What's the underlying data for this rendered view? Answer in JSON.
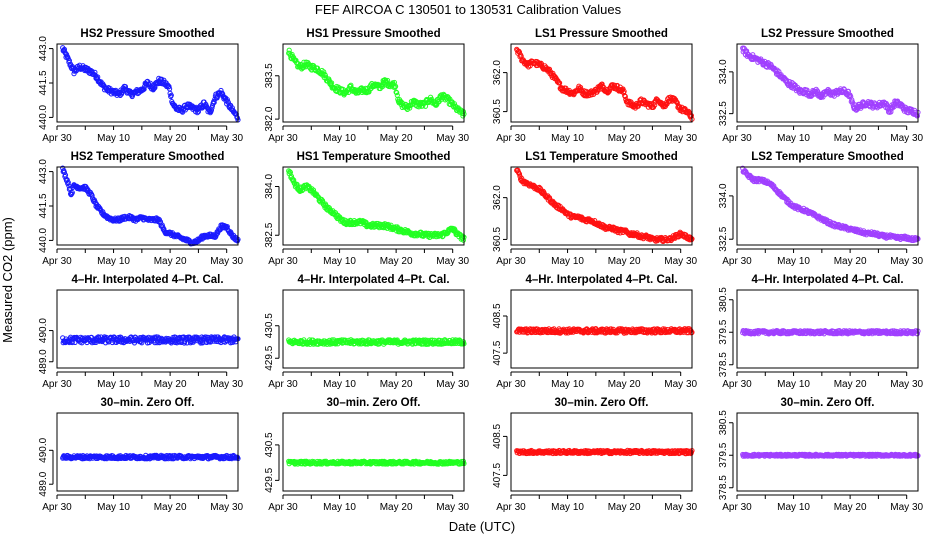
{
  "figure": {
    "title": "FEF    AIRCOA C    130501 to 130531    Calibration Values",
    "ylabel": "Measured CO2 (ppm)",
    "xlabel": "Date (UTC)"
  },
  "colors": {
    "HS2": "#1a1aff",
    "HS1": "#22ff22",
    "LS1": "#ff1111",
    "LS2": "#a040ff"
  },
  "x_axis": {
    "min_day": 0,
    "max_day": 32,
    "ticks": [
      0,
      5,
      10,
      15,
      20,
      25,
      30
    ],
    "labeled_ticks": [
      {
        "day": 0,
        "label": "Apr 30"
      },
      {
        "day": 10,
        "label": "May 10"
      },
      {
        "day": 20,
        "label": "May 20"
      },
      {
        "day": 30,
        "label": "May 30"
      }
    ]
  },
  "chart_data": [
    {
      "type": "scatter",
      "title": "HS2 Pressure Smoothed",
      "series": "HS2",
      "ylim": [
        439.8,
        443.2
      ],
      "yticks": [
        "440.0",
        "441.5",
        "443.0"
      ],
      "x": [
        1,
        2,
        3,
        4,
        5,
        6,
        7,
        8,
        9,
        10,
        11,
        12,
        13,
        14,
        15,
        16,
        17,
        18,
        19,
        19.8,
        20.5,
        21,
        22,
        23,
        24,
        25,
        26,
        27,
        28,
        29,
        30,
        31,
        32
      ],
      "y": [
        443.0,
        442.5,
        442.0,
        442.2,
        442.1,
        442.0,
        441.8,
        441.4,
        441.2,
        441.1,
        441.0,
        441.3,
        441.0,
        441.1,
        441.2,
        441.5,
        441.3,
        441.6,
        441.5,
        441.3,
        440.6,
        440.4,
        440.3,
        440.5,
        440.4,
        440.3,
        440.6,
        440.2,
        440.9,
        441.1,
        440.7,
        440.3,
        440.0
      ],
      "spread": 0.12
    },
    {
      "type": "scatter",
      "title": "HS1 Pressure Smoothed",
      "series": "HS1",
      "ylim": [
        381.9,
        384.6
      ],
      "yticks": [
        "382.0",
        "383.5"
      ],
      "x": [
        1,
        2,
        3,
        4,
        5,
        6,
        7,
        8,
        9,
        10,
        11,
        12,
        13,
        14,
        15,
        16,
        17,
        18,
        19,
        19.8,
        20.5,
        21,
        22,
        23,
        24,
        25,
        26,
        27,
        28,
        29,
        30,
        31,
        32
      ],
      "y": [
        384.35,
        384.0,
        383.8,
        383.9,
        383.8,
        383.75,
        383.6,
        383.35,
        383.1,
        383.0,
        382.9,
        383.1,
        382.9,
        383.0,
        383.0,
        383.2,
        383.1,
        383.3,
        383.2,
        383.2,
        382.6,
        382.5,
        382.4,
        382.6,
        382.5,
        382.5,
        382.7,
        382.5,
        382.8,
        382.7,
        382.5,
        382.3,
        382.15
      ],
      "spread": 0.1
    },
    {
      "type": "scatter",
      "title": "LS1 Pressure Smoothed",
      "series": "LS1",
      "ylim": [
        360.1,
        363.1
      ],
      "yticks": [
        "360.5",
        "362.0"
      ],
      "x": [
        1,
        2,
        3,
        4,
        5,
        6,
        7,
        8,
        9,
        10,
        11,
        12,
        13,
        14,
        15,
        16,
        17,
        18,
        19,
        19.8,
        20.5,
        21,
        22,
        23,
        24,
        25,
        26,
        27,
        28,
        29,
        30,
        31,
        32
      ],
      "y": [
        362.9,
        362.5,
        362.3,
        362.4,
        362.3,
        362.2,
        362.0,
        361.7,
        361.4,
        361.3,
        361.2,
        361.4,
        361.2,
        361.2,
        361.3,
        361.5,
        361.3,
        361.5,
        361.4,
        361.3,
        360.9,
        360.8,
        360.7,
        360.9,
        360.8,
        360.7,
        361.0,
        360.7,
        361.0,
        360.9,
        360.6,
        360.5,
        360.3
      ],
      "spread": 0.1
    },
    {
      "type": "scatter",
      "title": "LS2 Pressure Smoothed",
      "series": "LS2",
      "ylim": [
        332.2,
        335.0
      ],
      "yticks": [
        "332.5",
        "334.0"
      ],
      "x": [
        1,
        2,
        3,
        4,
        5,
        6,
        7,
        8,
        9,
        10,
        11,
        12,
        13,
        14,
        15,
        16,
        17,
        18,
        19,
        19.8,
        20.5,
        21,
        22,
        23,
        24,
        25,
        26,
        27,
        28,
        29,
        30,
        31,
        32
      ],
      "y": [
        334.8,
        334.6,
        334.5,
        334.4,
        334.3,
        334.2,
        334.0,
        333.8,
        333.6,
        333.5,
        333.3,
        333.3,
        333.2,
        333.3,
        333.1,
        333.3,
        333.2,
        333.3,
        333.3,
        333.2,
        332.8,
        332.7,
        332.8,
        332.9,
        332.8,
        332.8,
        332.9,
        332.6,
        332.9,
        332.8,
        332.6,
        332.6,
        332.5
      ],
      "spread": 0.1
    },
    {
      "type": "scatter",
      "title": "HS2 Temperature Smoothed",
      "series": "HS2",
      "ylim": [
        439.8,
        443.2
      ],
      "yticks": [
        "440.0",
        "441.5",
        "443.0"
      ],
      "x": [
        1,
        2,
        2.5,
        3,
        4,
        5,
        6,
        7,
        8,
        9,
        10,
        11,
        12,
        13,
        14,
        15,
        16,
        17,
        18,
        19,
        20,
        21,
        22,
        23,
        24,
        25,
        26,
        27,
        28,
        29,
        30,
        31,
        32
      ],
      "y": [
        443.1,
        442.5,
        442.0,
        442.4,
        442.3,
        442.3,
        442.0,
        441.5,
        441.2,
        441.0,
        440.9,
        440.9,
        441.0,
        441.0,
        440.9,
        441.0,
        440.9,
        440.9,
        440.9,
        440.4,
        440.3,
        440.2,
        440.1,
        440.0,
        439.9,
        440.0,
        440.2,
        440.2,
        440.2,
        440.6,
        440.6,
        440.2,
        440.0
      ],
      "spread": 0.08
    },
    {
      "type": "scatter",
      "title": "HS1 Temperature Smoothed",
      "series": "HS1",
      "ylim": [
        382.2,
        384.6
      ],
      "yticks": [
        "382.5",
        "384.0"
      ],
      "x": [
        1,
        2,
        3,
        4,
        5,
        6,
        7,
        8,
        9,
        10,
        11,
        12,
        13,
        14,
        15,
        16,
        17,
        18,
        19,
        20,
        21,
        22,
        23,
        24,
        25,
        26,
        27,
        28,
        29,
        30,
        31,
        32
      ],
      "y": [
        384.5,
        384.1,
        383.9,
        384.0,
        383.9,
        383.7,
        383.5,
        383.3,
        383.2,
        383.0,
        382.9,
        382.9,
        382.9,
        382.9,
        382.8,
        382.8,
        382.8,
        382.8,
        382.75,
        382.7,
        382.65,
        382.6,
        382.55,
        382.55,
        382.5,
        382.5,
        382.5,
        382.5,
        382.6,
        382.7,
        382.5,
        382.4
      ],
      "spread": 0.07
    },
    {
      "type": "scatter",
      "title": "LS1 Temperature Smoothed",
      "series": "LS1",
      "ylim": [
        360.3,
        363.1
      ],
      "yticks": [
        "360.5",
        "362.0"
      ],
      "x": [
        1,
        2,
        3,
        4,
        5,
        6,
        7,
        8,
        9,
        10,
        11,
        12,
        13,
        14,
        15,
        16,
        17,
        18,
        19,
        20,
        21,
        22,
        23,
        24,
        25,
        26,
        27,
        28,
        29,
        30,
        31,
        32
      ],
      "y": [
        363.0,
        362.6,
        362.5,
        362.4,
        362.3,
        362.1,
        361.9,
        361.7,
        361.6,
        361.4,
        361.3,
        361.3,
        361.2,
        361.2,
        361.1,
        361.0,
        360.9,
        360.9,
        360.8,
        360.8,
        360.7,
        360.7,
        360.6,
        360.6,
        360.5,
        360.5,
        360.5,
        360.5,
        360.6,
        360.7,
        360.6,
        360.5
      ],
      "spread": 0.07
    },
    {
      "type": "scatter",
      "title": "LS2 Temperature Smoothed",
      "series": "LS2",
      "ylim": [
        332.3,
        335.0
      ],
      "yticks": [
        "332.5",
        "334.0"
      ],
      "x": [
        1,
        2,
        3,
        4,
        5,
        6,
        7,
        8,
        9,
        10,
        11,
        12,
        13,
        14,
        15,
        16,
        17,
        18,
        19,
        20,
        21,
        22,
        23,
        24,
        25,
        26,
        27,
        28,
        29,
        30,
        31,
        32
      ],
      "y": [
        334.9,
        334.7,
        334.55,
        334.55,
        334.5,
        334.4,
        334.2,
        334.0,
        333.8,
        333.65,
        333.55,
        333.5,
        333.4,
        333.3,
        333.2,
        333.1,
        333.0,
        332.95,
        332.9,
        332.85,
        332.8,
        332.75,
        332.7,
        332.7,
        332.65,
        332.6,
        332.6,
        332.55,
        332.55,
        332.55,
        332.5,
        332.5
      ],
      "spread": 0.06
    },
    {
      "type": "scatter",
      "title": "4–Hr. Interpolated 4–Pt. Cal.",
      "series": "HS2",
      "ylim": [
        488.8,
        491.3
      ],
      "yticks": [
        "489.0",
        "490.0"
      ],
      "x": [
        1,
        32
      ],
      "y": [
        489.7,
        489.7
      ],
      "spread": 0.1
    },
    {
      "type": "scatter",
      "title": "4–Hr. Interpolated 4–Pt. Cal.",
      "series": "HS1",
      "ylim": [
        429.2,
        431.6
      ],
      "yticks": [
        "429.5",
        "430.5"
      ],
      "x": [
        1,
        32
      ],
      "y": [
        430.0,
        430.0
      ],
      "spread": 0.07
    },
    {
      "type": "scatter",
      "title": "4–Hr. Interpolated 4–Pt. Cal.",
      "series": "LS1",
      "ylim": [
        407.1,
        409.2
      ],
      "yticks": [
        "407.5",
        "408.5"
      ],
      "x": [
        1,
        32
      ],
      "y": [
        408.1,
        408.1
      ],
      "spread": 0.06
    },
    {
      "type": "scatter",
      "title": "4–Hr. Interpolated 4–Pt. Cal.",
      "series": "LS2",
      "ylim": [
        378.4,
        380.8
      ],
      "yticks": [
        "378.5",
        "379.5",
        "380.5"
      ],
      "x": [
        1,
        32
      ],
      "y": [
        379.5,
        379.5
      ],
      "spread": 0.05
    },
    {
      "type": "scatter",
      "title": "30–min. Zero Off.",
      "series": "HS2",
      "ylim": [
        488.8,
        491.1
      ],
      "yticks": [
        "489.0",
        "490.0"
      ],
      "x": [
        1,
        32
      ],
      "y": [
        489.8,
        489.8
      ],
      "spread": 0.05
    },
    {
      "type": "scatter",
      "title": "30–min. Zero Off.",
      "series": "HS1",
      "ylim": [
        429.2,
        431.4
      ],
      "yticks": [
        "429.5",
        "430.5"
      ],
      "x": [
        1,
        32
      ],
      "y": [
        430.0,
        430.0
      ],
      "spread": 0.04
    },
    {
      "type": "scatter",
      "title": "30–min. Zero Off.",
      "series": "LS1",
      "ylim": [
        407.1,
        409.1
      ],
      "yticks": [
        "407.5",
        "408.5"
      ],
      "x": [
        1,
        32
      ],
      "y": [
        408.1,
        408.1
      ],
      "spread": 0.04
    },
    {
      "type": "scatter",
      "title": "30–min. Zero Off.",
      "series": "LS2",
      "ylim": [
        378.4,
        380.8
      ],
      "yticks": [
        "378.5",
        "379.5",
        "380.5"
      ],
      "x": [
        1,
        32
      ],
      "y": [
        379.5,
        379.5
      ],
      "spread": 0.03
    }
  ]
}
